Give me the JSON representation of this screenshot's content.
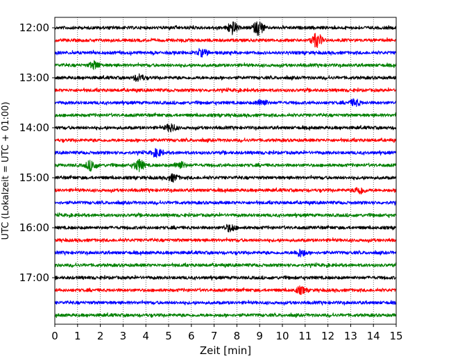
{
  "chart_data": {
    "type": "line",
    "title": "",
    "xlabel": "Zeit  [min]",
    "ylabel": "UTC (Lokalzeit = UTC + 01:00)",
    "xlim": [
      0,
      15
    ],
    "x_ticks": [
      0,
      1,
      2,
      3,
      4,
      5,
      6,
      7,
      8,
      9,
      10,
      11,
      12,
      13,
      14,
      15
    ],
    "y_tick_labels": [
      "12:00",
      "13:00",
      "14:00",
      "15:00",
      "16:00",
      "17:00"
    ],
    "trace_interval_min": 15,
    "trace_colors": [
      "#000000",
      "#ff0000",
      "#0000ff",
      "#008000"
    ],
    "grid": "vertical dotted",
    "legend": "none",
    "traces": [
      {
        "start": "12:00",
        "color": "#000000"
      },
      {
        "start": "12:15",
        "color": "#ff0000"
      },
      {
        "start": "12:30",
        "color": "#0000ff"
      },
      {
        "start": "12:45",
        "color": "#008000"
      },
      {
        "start": "13:00",
        "color": "#000000"
      },
      {
        "start": "13:15",
        "color": "#ff0000"
      },
      {
        "start": "13:30",
        "color": "#0000ff"
      },
      {
        "start": "13:45",
        "color": "#008000"
      },
      {
        "start": "14:00",
        "color": "#000000"
      },
      {
        "start": "14:15",
        "color": "#ff0000"
      },
      {
        "start": "14:30",
        "color": "#0000ff"
      },
      {
        "start": "14:45",
        "color": "#008000"
      },
      {
        "start": "15:00",
        "color": "#000000"
      },
      {
        "start": "15:15",
        "color": "#ff0000"
      },
      {
        "start": "15:30",
        "color": "#0000ff"
      },
      {
        "start": "15:45",
        "color": "#008000"
      },
      {
        "start": "16:00",
        "color": "#000000"
      },
      {
        "start": "16:15",
        "color": "#ff0000"
      },
      {
        "start": "16:30",
        "color": "#0000ff"
      },
      {
        "start": "16:45",
        "color": "#008000"
      },
      {
        "start": "17:00",
        "color": "#000000"
      },
      {
        "start": "17:15",
        "color": "#ff0000"
      },
      {
        "start": "17:30",
        "color": "#0000ff"
      },
      {
        "start": "17:45",
        "color": "#008000"
      }
    ],
    "events": [
      {
        "start": "12:00",
        "x": 7.8,
        "amp": 2.2
      },
      {
        "start": "12:00",
        "x": 8.95,
        "amp": 2.6
      },
      {
        "start": "12:15",
        "x": 11.5,
        "amp": 2.4
      },
      {
        "start": "12:30",
        "x": 6.5,
        "amp": 1.2
      },
      {
        "start": "12:45",
        "x": 1.75,
        "amp": 1.3
      },
      {
        "start": "13:00",
        "x": 3.7,
        "amp": 1.2
      },
      {
        "start": "13:30",
        "x": 9.1,
        "amp": 1.2
      },
      {
        "start": "13:30",
        "x": 13.2,
        "amp": 1.2
      },
      {
        "start": "14:00",
        "x": 5.1,
        "amp": 1.4
      },
      {
        "start": "14:30",
        "x": 4.5,
        "amp": 1.3
      },
      {
        "start": "14:45",
        "x": 1.6,
        "amp": 1.8
      },
      {
        "start": "14:45",
        "x": 3.7,
        "amp": 2.0
      },
      {
        "start": "14:45",
        "x": 5.5,
        "amp": 1.3
      },
      {
        "start": "15:00",
        "x": 5.2,
        "amp": 1.2
      },
      {
        "start": "15:15",
        "x": 13.4,
        "amp": 1.3
      },
      {
        "start": "16:00",
        "x": 7.7,
        "amp": 1.3
      },
      {
        "start": "16:30",
        "x": 10.8,
        "amp": 1.3
      },
      {
        "start": "17:15",
        "x": 10.8,
        "amp": 1.2
      }
    ]
  }
}
